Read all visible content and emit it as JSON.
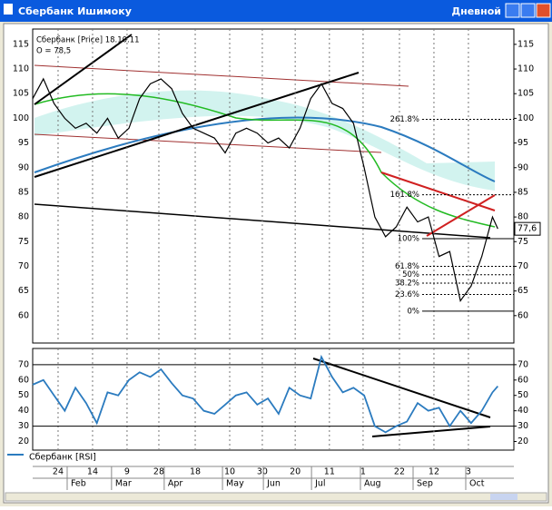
{
  "window": {
    "title": "Сбербанк Ишимоку",
    "period": "Дневной"
  },
  "chart_data": [
    {
      "type": "line",
      "title": "Сбербанк [Price] 18.10.11",
      "subtitle": "O = 78,5",
      "x": [
        0,
        4,
        8,
        12,
        16,
        20,
        24,
        28,
        32,
        36,
        40,
        44,
        48,
        52,
        56,
        60,
        64,
        68,
        72,
        76,
        80,
        84,
        88,
        92,
        96,
        100,
        104,
        108,
        112,
        116,
        120,
        124,
        128,
        132,
        136,
        140,
        144,
        148,
        152,
        156,
        160,
        164,
        168,
        172,
        174
      ],
      "series": [
        {
          "name": "Сбербанк [Price]",
          "color": "#000000",
          "values": [
            104,
            108,
            103,
            100,
            98,
            99,
            97,
            100,
            96,
            98,
            104,
            107,
            108,
            106,
            101,
            98,
            97,
            96,
            93,
            97,
            98,
            97,
            95,
            96,
            94,
            98,
            104,
            107,
            103,
            102,
            99,
            90,
            80,
            76,
            78,
            82,
            79,
            80,
            72,
            73,
            63,
            66,
            72,
            80,
            77.6
          ]
        }
      ],
      "last_price": {
        "value": 77.6,
        "label": "77,6"
      },
      "fib_levels": [
        {
          "value": 99.8,
          "label": "261.8%"
        },
        {
          "value": 84.5,
          "label": "161.8%"
        },
        {
          "value": 75.6,
          "label": "100%"
        },
        {
          "value": 70,
          "label": "61.8%"
        },
        {
          "value": 68.3,
          "label": "50%"
        },
        {
          "value": 66.6,
          "label": "38.2%"
        },
        {
          "value": 64.3,
          "label": "23.6%"
        },
        {
          "value": 60.9,
          "label": "0%"
        }
      ],
      "xlim": [
        0,
        180
      ],
      "ylim": [
        55,
        117
      ],
      "yticks": [
        60,
        65,
        70,
        75,
        80,
        85,
        90,
        95,
        100,
        105,
        110,
        115
      ],
      "xticks": [
        {
          "value": 9.5,
          "label": "24"
        },
        {
          "value": 22.4,
          "label": "14"
        },
        {
          "value": 35.3,
          "label": "9"
        },
        {
          "value": 47.2,
          "label": "28"
        },
        {
          "value": 60.8,
          "label": "18"
        },
        {
          "value": 73.7,
          "label": "10"
        },
        {
          "value": 85.9,
          "label": "30"
        },
        {
          "value": 98.2,
          "label": "20"
        },
        {
          "value": 111,
          "label": "11"
        },
        {
          "value": 123.6,
          "label": "1"
        },
        {
          "value": 137.2,
          "label": "22"
        },
        {
          "value": 150.1,
          "label": "12"
        },
        {
          "value": 163,
          "label": "3"
        }
      ],
      "month_ticks": [
        {
          "value": 12.9,
          "label": "Feb"
        },
        {
          "value": 29.5,
          "label": "Mar"
        },
        {
          "value": 49.2,
          "label": "Apr"
        },
        {
          "value": 71,
          "label": "May"
        },
        {
          "value": 86.3,
          "label": "Jun"
        },
        {
          "value": 104.3,
          "label": "Jul"
        },
        {
          "value": 122.6,
          "label": "Aug"
        },
        {
          "value": 142.3,
          "label": "Sep"
        },
        {
          "value": 162,
          "label": "Oct"
        }
      ],
      "grid": true
    },
    {
      "type": "line",
      "x": [
        0,
        4,
        8,
        12,
        16,
        20,
        24,
        28,
        32,
        36,
        40,
        44,
        48,
        52,
        56,
        60,
        64,
        68,
        72,
        76,
        80,
        84,
        88,
        92,
        96,
        100,
        104,
        108,
        112,
        116,
        120,
        124,
        128,
        132,
        136,
        140,
        144,
        148,
        152,
        156,
        160,
        164,
        168,
        172,
        174
      ],
      "series": [
        {
          "name": "Сбербанк [RSI]",
          "color": "#2b7bbf",
          "values": [
            57,
            60,
            50,
            40,
            55,
            45,
            32,
            52,
            50,
            60,
            65,
            62,
            67,
            58,
            50,
            48,
            40,
            38,
            44,
            50,
            52,
            44,
            48,
            38,
            55,
            50,
            48,
            75,
            62,
            52,
            55,
            50,
            30,
            26,
            30,
            33,
            45,
            40,
            42,
            30,
            40,
            32,
            40,
            52,
            56
          ]
        }
      ],
      "hlines": [
        70,
        30
      ],
      "xlim": [
        0,
        180
      ],
      "ylim": [
        15,
        77
      ],
      "yticks": [
        20,
        30,
        40,
        50,
        60,
        70
      ],
      "grid": true
    }
  ]
}
